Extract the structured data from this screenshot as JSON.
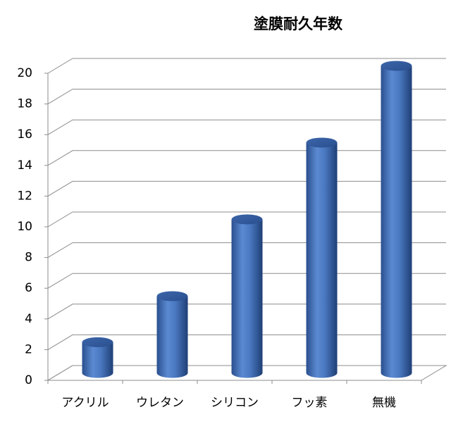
{
  "chart_data": {
    "type": "bar",
    "title": "塗膜耐久年数",
    "categories": [
      "アクリル",
      "ウレタン",
      "シリコン",
      "フッ素",
      "無機"
    ],
    "values": [
      2,
      5,
      10,
      15,
      20
    ],
    "color": "#4a78c0",
    "ylim": [
      0,
      20
    ],
    "yticks": [
      0,
      2,
      4,
      6,
      8,
      10,
      12,
      14,
      16,
      18,
      20
    ],
    "grid": true
  }
}
